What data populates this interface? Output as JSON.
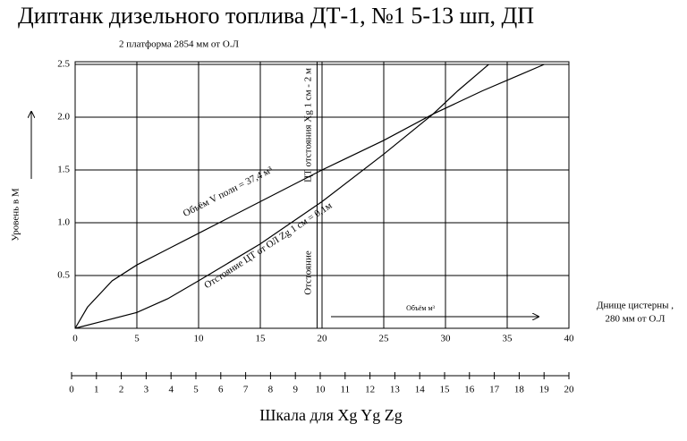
{
  "chart_data": {
    "type": "line",
    "title": "Диптанк дизельного топлива ДТ-1, №1    5-13 шп, ДП",
    "ylabel": "Уровень в М",
    "x2label": "Шкала для Xg Yg Zg",
    "annotations": {
      "top": "2 платформа 2854 мм от О.Л",
      "cg": "ЦТ отстояния Xg 1 см - 2 м",
      "offset": "Отстояние",
      "volume": "Объём м³",
      "bottom": [
        "Днище цистерны ,",
        "280 мм от О.Л"
      ]
    },
    "xlim": [
      0,
      40
    ],
    "xticks": [
      0,
      5,
      10,
      15,
      20,
      25,
      30,
      35,
      40
    ],
    "ylim": [
      0,
      2.5
    ],
    "yticks": [
      0.5,
      {
        "value": 1,
        "label": "1.0"
      },
      1.5,
      {
        "value": 2,
        "label": "2.0"
      },
      2.5
    ],
    "x2lim": [
      0,
      20
    ],
    "x2ticks": [
      0,
      1,
      2,
      3,
      4,
      5,
      6,
      7,
      8,
      9,
      10,
      11,
      12,
      13,
      14,
      15,
      16,
      17,
      18,
      19,
      20
    ],
    "vline": 19.6,
    "grid": true,
    "series": [
      {
        "name": "Объём V полн = 37,4 м³",
        "color": "#000000",
        "x": [
          0,
          1,
          3,
          5,
          7.5,
          10,
          15,
          20,
          25,
          29,
          33,
          36,
          38
        ],
        "values": [
          0,
          0.2,
          0.45,
          0.6,
          0.75,
          0.9,
          1.2,
          1.5,
          1.78,
          2.03,
          2.25,
          2.4,
          2.5
        ]
      },
      {
        "name": "Отстояние ЦТ от ОЛ Zg 1 см = 0,1м",
        "color": "#000000",
        "x": [
          0,
          2,
          5,
          7.5,
          10,
          15,
          20,
          25,
          29,
          31,
          33,
          33.5
        ],
        "values": [
          0,
          0.06,
          0.15,
          0.28,
          0.45,
          0.8,
          1.2,
          1.65,
          2.03,
          2.25,
          2.45,
          2.5
        ]
      }
    ]
  }
}
